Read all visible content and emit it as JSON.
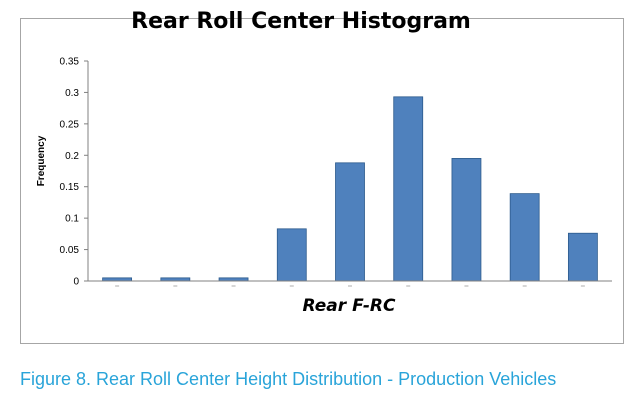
{
  "chart_data": {
    "type": "bar",
    "title": "Rear Roll Center Histogram",
    "xlabel": "Rear F-RC",
    "ylabel": "Frequency",
    "ylim": [
      0,
      0.35
    ],
    "yticks": [
      "0",
      "0.05",
      "0.1",
      "0.15",
      "0.2",
      "0.25",
      "0.3",
      "0.35"
    ],
    "categories": [
      "",
      "",
      "",
      "",
      "",
      "",
      "",
      "",
      ""
    ],
    "values": [
      0.005,
      0.005,
      0.005,
      0.083,
      0.188,
      0.293,
      0.195,
      0.139,
      0.076
    ],
    "bar_color": "#4f81bd",
    "bar_edge_color": "#2c5a8c",
    "grid": false,
    "legend": "none"
  },
  "caption": "Figure 8. Rear Roll Center Height Distribution - Production Vehicles"
}
